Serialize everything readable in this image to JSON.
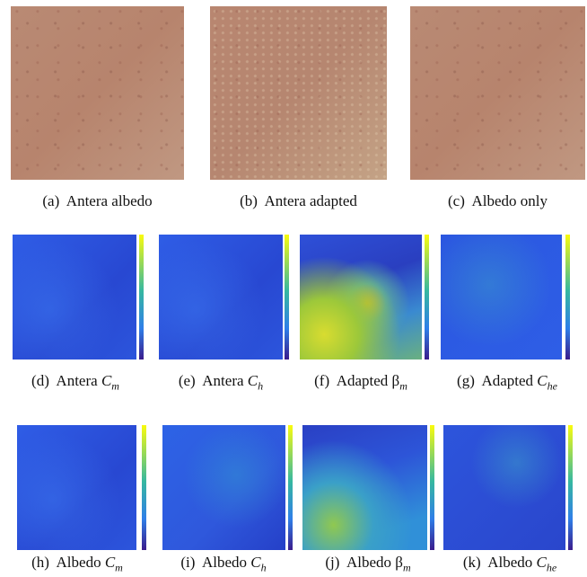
{
  "figures": [
    {
      "label": "(a)",
      "text": "Antera albedo"
    },
    {
      "label": "(b)",
      "text": "Antera adapted"
    },
    {
      "label": "(c)",
      "text": "Albedo only"
    },
    {
      "label": "(d)",
      "text": "Antera",
      "symbol": "C",
      "subscript": "m"
    },
    {
      "label": "(e)",
      "text": "Antera",
      "symbol": "C",
      "subscript": "h"
    },
    {
      "label": "(f)",
      "text": "Adapted",
      "symbol": "β",
      "subscript": "m"
    },
    {
      "label": "(g)",
      "text": "Adapted",
      "symbol": "C",
      "subscript": "he"
    },
    {
      "label": "(h)",
      "text": "Albedo",
      "symbol": "C",
      "subscript": "m"
    },
    {
      "label": "(i)",
      "text": "Albedo",
      "symbol": "C",
      "subscript": "h"
    },
    {
      "label": "(j)",
      "text": "Albedo",
      "symbol": "β",
      "subscript": "m"
    },
    {
      "label": "(k)",
      "text": "Albedo",
      "symbol": "C",
      "subscript": "he"
    }
  ]
}
